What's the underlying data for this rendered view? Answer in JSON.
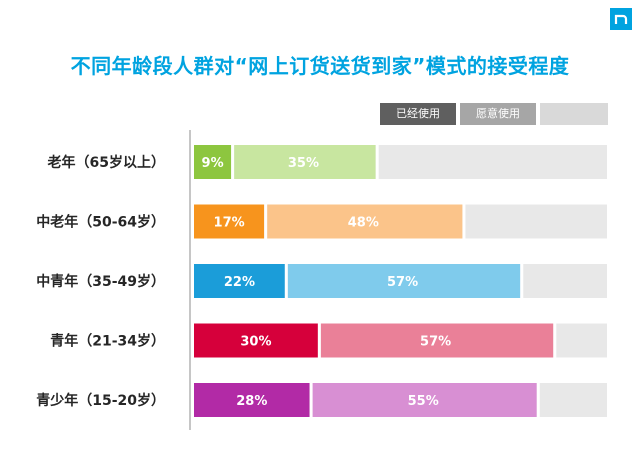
{
  "title": "不同年龄段人群对“网上订货送货到家”模式的接受程度",
  "logo": "nielsen-logo-icon",
  "legend": {
    "used": "已经使用",
    "willing": "愿意使用"
  },
  "colors": {
    "title": "#00a3e0",
    "rest": "#e8e8e8"
  },
  "chart_data": {
    "type": "bar",
    "orientation": "horizontal",
    "stacked": true,
    "categories": [
      "老年（65岁以上）",
      "中老年（50-64岁）",
      "中青年（35-49岁）",
      "青年（21-34岁）",
      "青少年（15-20岁）"
    ],
    "series": [
      {
        "name": "已经使用",
        "values": [
          9,
          17,
          22,
          30,
          28
        ],
        "colors": [
          "#8dc63f",
          "#f7941d",
          "#1b9dd9",
          "#d6003b",
          "#b22aa6"
        ]
      },
      {
        "name": "愿意使用",
        "values": [
          35,
          48,
          57,
          57,
          55
        ],
        "colors": [
          "#c8e6a0",
          "#fbc48a",
          "#7fcbec",
          "#ea8098",
          "#d88fd3"
        ]
      }
    ],
    "xlim": [
      0,
      100
    ],
    "value_labels": [
      [
        "9%",
        "35%"
      ],
      [
        "17%",
        "48%"
      ],
      [
        "22%",
        "57%"
      ],
      [
        "30%",
        "57%"
      ],
      [
        "28%",
        "55%"
      ]
    ]
  }
}
